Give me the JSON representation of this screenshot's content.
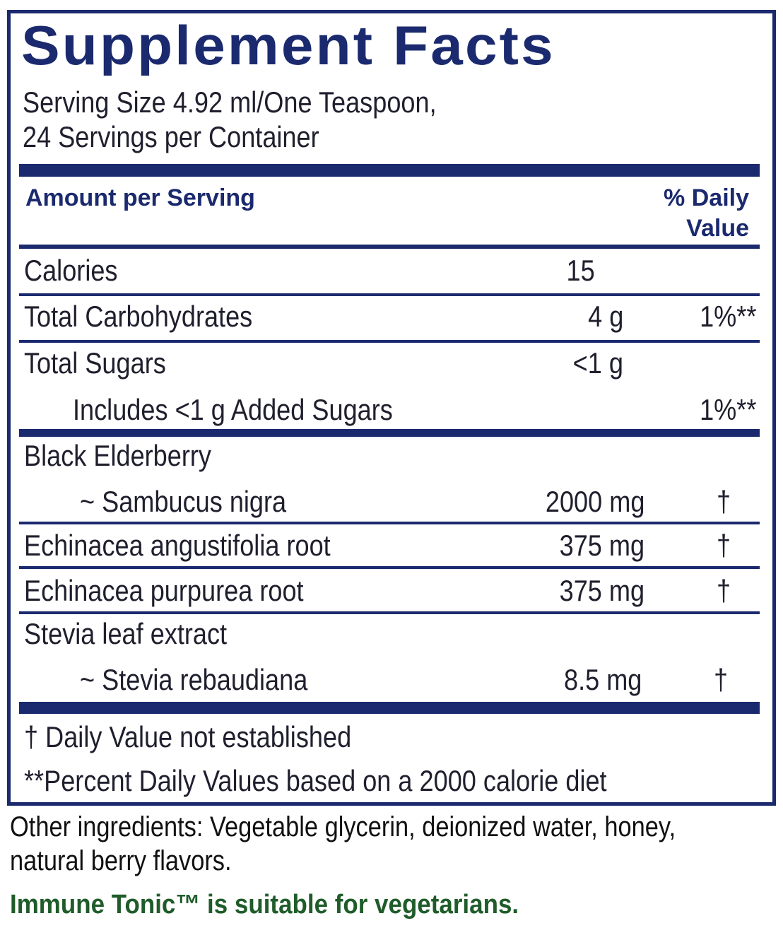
{
  "header": {
    "title": "Supplement Facts",
    "serving_size": "Serving Size 4.92 ml/One Teaspoon,",
    "servings": "24 Servings per Container"
  },
  "table": {
    "amount_header": "Amount per Serving",
    "dv_header": [
      "% Daily",
      "Value"
    ],
    "rows": [
      {
        "name": "Calories",
        "amount": "15"
      },
      {
        "name": "Total Carbohydrates",
        "amount": "4 g",
        "dv": "1%**"
      },
      {
        "name": "Total Sugars",
        "amount": "<1 g"
      },
      {
        "name": "Includes <1 g Added Sugars",
        "dv": "1%**"
      },
      {
        "name": "Black Elderberry",
        "sub": "~ Sambucus nigra",
        "amount": "2000 mg",
        "dv": "†"
      },
      {
        "name": "Echinacea angustifolia root",
        "amount": "375 mg",
        "dv": "†"
      },
      {
        "name": "Echinacea purpurea root",
        "amount": "375 mg",
        "dv": "†"
      },
      {
        "name": "Stevia leaf extract",
        "sub": "~ Stevia rebaudiana",
        "amount": "8.5 mg",
        "dv": "†"
      }
    ]
  },
  "footnotes": [
    "† Daily Value not established",
    "**Percent Daily Values based on a 2000 calorie diet"
  ],
  "other_ingredients": [
    "Other ingredients: Vegetable glycerin, deionized water, honey,",
    "natural berry flavors."
  ],
  "note": "Immune Tonic™ is suitable for vegetarians."
}
